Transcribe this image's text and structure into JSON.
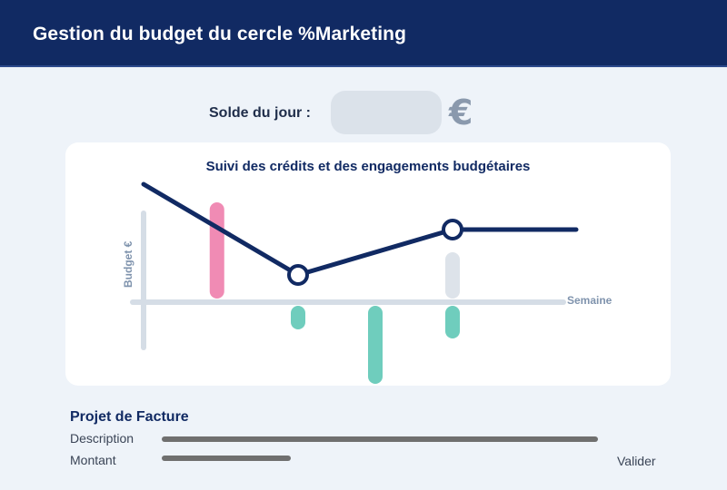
{
  "header": {
    "title": "Gestion du budget du cercle %Marketing"
  },
  "solde": {
    "label": "Solde du jour :",
    "value": "",
    "currency_symbol": "€"
  },
  "chart_data": {
    "type": "line",
    "title": "Suivi des crédits et des engagements budgétaires",
    "xlabel": "Semaine",
    "ylabel": "Budget €",
    "line_points": [
      {
        "x": 0,
        "y": 1.3
      },
      {
        "x": 2,
        "y": 0.3
      },
      {
        "x": 4,
        "y": 0.8
      },
      {
        "x": 5.6,
        "y": 0.8
      }
    ],
    "markers": [
      {
        "x": 2,
        "y": 0.3
      },
      {
        "x": 4,
        "y": 0.8
      }
    ],
    "bars": [
      {
        "x": 0.95,
        "value": 1.1,
        "color": "#f08bb4"
      },
      {
        "x": 2,
        "value": -0.3,
        "color": "#6fcdbd"
      },
      {
        "x": 3,
        "value": -0.9,
        "color": "#6fcdbd"
      },
      {
        "x": 4,
        "value": 0.55,
        "color": "#dde3ea"
      },
      {
        "x": 4,
        "value": -0.4,
        "color": "#6fcdbd"
      }
    ],
    "colors": {
      "line": "#112a63",
      "axis": "#d5dde6",
      "axis_text": "#7f93ad"
    }
  },
  "facture": {
    "title": "Projet de Facture",
    "description_label": "Description",
    "montant_label": "Montant",
    "validate_label": "Valider"
  }
}
